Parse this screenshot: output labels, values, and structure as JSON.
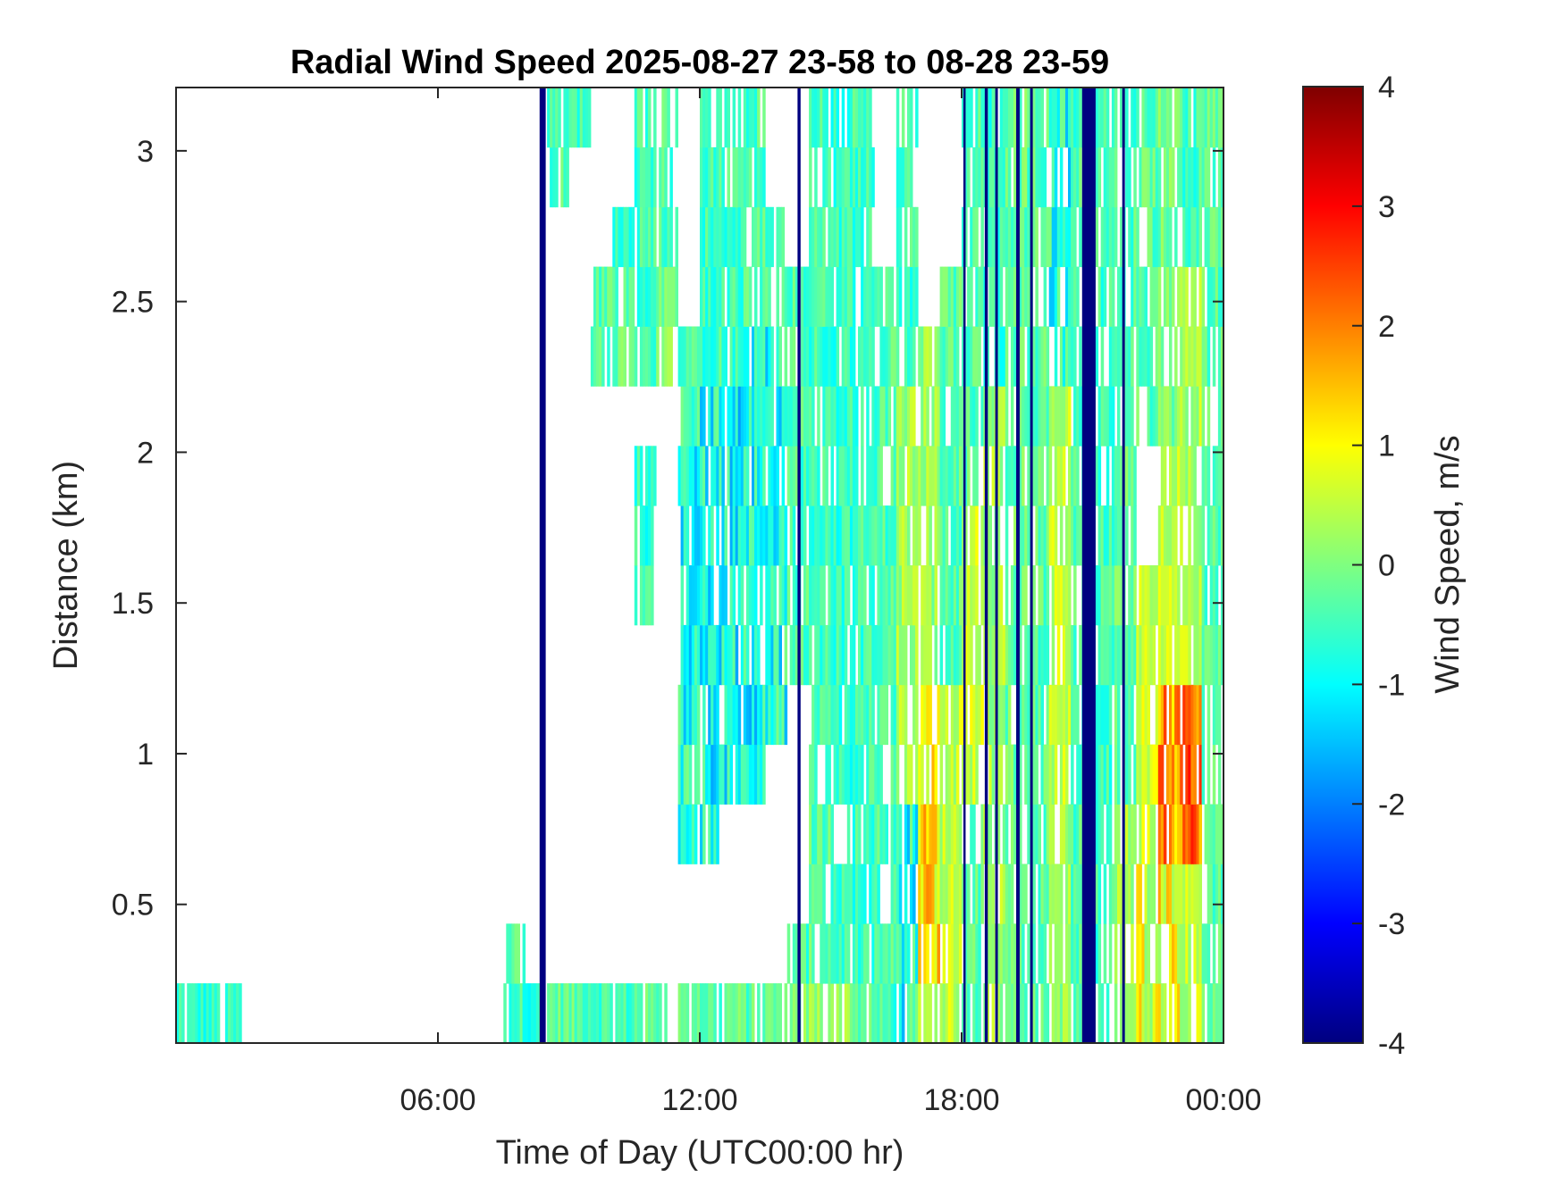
{
  "chart_data": {
    "type": "heatmap",
    "title": "Radial Wind Speed 2025-08-27 23-58 to 08-28 23-59",
    "xlabel": "Time of Day (UTC00:00 hr)",
    "ylabel": "Distance (km)",
    "xlim": [
      0,
      24
    ],
    "ylim": [
      0.04,
      3.21
    ],
    "x_ticks": [
      6,
      12,
      18,
      24
    ],
    "x_tick_labels": [
      "06:00",
      "12:00",
      "18:00",
      "00:00"
    ],
    "y_ticks": [
      0.5,
      1,
      1.5,
      2,
      2.5,
      3
    ],
    "y_tick_labels": [
      "0.5",
      "1",
      "1.5",
      "2",
      "2.5",
      "3"
    ],
    "colormap": "jet",
    "colorbar": {
      "label": "Wind Speed, m/s",
      "range": [
        -4,
        4
      ],
      "ticks": [
        4,
        3,
        2,
        1,
        0,
        -1,
        -2,
        -3,
        -4
      ],
      "tick_labels": [
        "4",
        "3",
        "2",
        "1",
        "0",
        "-1",
        "-2",
        "-3",
        "-4"
      ]
    },
    "grid": false,
    "time_bin_hours": 0.5,
    "distance_bin_centers_km": [
      0.14,
      0.34,
      0.54,
      0.74,
      0.93,
      1.13,
      1.33,
      1.53,
      1.73,
      1.93,
      2.12,
      2.32,
      2.52,
      2.72,
      2.92,
      3.11
    ],
    "values_ms_by_distance": [
      [
        -0.7,
        -0.7,
        -0.7,
        null,
        null,
        null,
        null,
        null,
        null,
        null,
        null,
        null,
        null,
        null,
        null,
        -0.5,
        -0.6,
        -0.2,
        -0.3,
        -0.4,
        -0.5,
        -0.3,
        -0.2,
        -0.1,
        -0.3,
        -0.2,
        -0.3,
        -0.2,
        0.0,
        0.2,
        0.3,
        -0.2,
        -0.5,
        -0.8,
        0.5,
        0.5,
        -0.3,
        0.3,
        -0.2,
        -0.3,
        0.2,
        -0.4,
        -0.5,
        0.3,
        0.8,
        1.0,
        0.5,
        -0.3
      ],
      [
        null,
        null,
        null,
        null,
        null,
        null,
        null,
        null,
        null,
        null,
        null,
        null,
        null,
        null,
        null,
        -0.3,
        null,
        null,
        null,
        null,
        null,
        null,
        null,
        null,
        null,
        null,
        null,
        null,
        -0.4,
        -0.3,
        -0.5,
        -0.6,
        -0.4,
        -0.8,
        1.2,
        0.5,
        -0.3,
        0.3,
        -0.2,
        -0.3,
        0.2,
        -0.4,
        -0.5,
        0.3,
        0.8,
        1.0,
        0.5,
        -0.3
      ],
      [
        null,
        null,
        null,
        null,
        null,
        null,
        null,
        null,
        null,
        null,
        null,
        null,
        null,
        null,
        null,
        null,
        null,
        null,
        null,
        null,
        null,
        null,
        null,
        null,
        null,
        null,
        null,
        null,
        null,
        -0.3,
        -0.6,
        -0.6,
        -0.4,
        -0.8,
        1.2,
        0.5,
        -0.3,
        0.3,
        -0.2,
        -0.3,
        0.2,
        -0.4,
        -0.5,
        0.3,
        0.8,
        1.0,
        0.5,
        -0.3
      ],
      [
        null,
        null,
        null,
        null,
        null,
        null,
        null,
        null,
        null,
        null,
        null,
        null,
        null,
        null,
        null,
        null,
        null,
        null,
        null,
        null,
        null,
        null,
        null,
        -0.8,
        -0.9,
        null,
        null,
        null,
        null,
        -0.3,
        -0.6,
        -0.5,
        -0.4,
        -0.8,
        1.2,
        0.5,
        -0.3,
        0.3,
        -0.2,
        -0.3,
        0.2,
        -0.4,
        -0.5,
        0.3,
        0.6,
        1.8,
        2.2,
        -0.3
      ],
      [
        null,
        null,
        null,
        null,
        null,
        null,
        null,
        null,
        null,
        null,
        null,
        null,
        null,
        null,
        null,
        null,
        null,
        null,
        null,
        null,
        null,
        null,
        null,
        -0.8,
        -0.9,
        -1.0,
        -0.9,
        null,
        null,
        -0.5,
        -0.6,
        -0.5,
        -0.4,
        0.3,
        1.2,
        0.5,
        0.6,
        0.3,
        -0.2,
        -0.3,
        0.5,
        -0.4,
        -0.5,
        -0.2,
        0.6,
        1.8,
        2.2,
        -0.3
      ],
      [
        null,
        null,
        null,
        null,
        null,
        null,
        null,
        null,
        null,
        null,
        null,
        null,
        null,
        null,
        null,
        null,
        null,
        null,
        null,
        null,
        null,
        null,
        null,
        -0.8,
        -0.9,
        -1.0,
        -0.9,
        -0.8,
        null,
        -0.5,
        -0.6,
        -0.5,
        -0.4,
        0.3,
        1.2,
        0.5,
        0.6,
        0.3,
        -0.2,
        -0.3,
        0.5,
        -0.4,
        -0.5,
        -0.2,
        0.6,
        1.8,
        2.2,
        -0.3
      ],
      [
        null,
        null,
        null,
        null,
        null,
        null,
        null,
        null,
        null,
        null,
        null,
        null,
        null,
        null,
        null,
        null,
        null,
        null,
        null,
        null,
        null,
        null,
        null,
        -0.8,
        -0.9,
        -1.0,
        -0.9,
        -0.8,
        -0.4,
        -0.5,
        -0.6,
        -0.5,
        -0.4,
        0.3,
        0.2,
        -0.3,
        0.6,
        0.3,
        -0.2,
        -0.3,
        0.5,
        -0.4,
        -0.5,
        -0.2,
        0.6,
        0.5,
        0.4,
        -0.3
      ],
      [
        null,
        null,
        null,
        null,
        null,
        null,
        null,
        null,
        null,
        null,
        null,
        null,
        null,
        null,
        null,
        null,
        null,
        null,
        null,
        null,
        null,
        -0.6,
        null,
        -0.8,
        -0.9,
        -1.0,
        -0.9,
        -0.8,
        -0.4,
        -0.5,
        -0.6,
        -0.5,
        -0.4,
        0.3,
        0.2,
        -0.3,
        0.6,
        0.3,
        -0.2,
        -0.3,
        0.5,
        -0.4,
        -0.5,
        -0.2,
        0.6,
        0.5,
        0.4,
        -0.3
      ],
      [
        null,
        null,
        null,
        null,
        null,
        null,
        null,
        null,
        null,
        null,
        null,
        null,
        null,
        null,
        null,
        null,
        null,
        null,
        null,
        null,
        null,
        -0.6,
        null,
        -0.8,
        -0.9,
        -1.0,
        -0.9,
        -0.8,
        -0.4,
        -0.5,
        -0.6,
        -0.5,
        -0.4,
        0.3,
        0.2,
        -0.3,
        0.6,
        0.3,
        -0.2,
        -0.3,
        0.5,
        -0.4,
        -0.5,
        -0.2,
        null,
        0.5,
        0.4,
        -0.3
      ],
      [
        null,
        null,
        null,
        null,
        null,
        null,
        null,
        null,
        null,
        null,
        null,
        null,
        null,
        null,
        null,
        null,
        null,
        null,
        null,
        null,
        null,
        -0.6,
        null,
        -0.8,
        -0.9,
        -1.0,
        -0.9,
        -0.8,
        -0.4,
        -0.5,
        -0.6,
        -0.5,
        -0.4,
        0.3,
        0.2,
        -0.3,
        -0.3,
        0.3,
        -0.2,
        -0.3,
        0.5,
        -0.4,
        -0.5,
        -0.2,
        null,
        0.5,
        0.4,
        -0.3
      ],
      [
        null,
        null,
        null,
        null,
        null,
        null,
        null,
        null,
        null,
        null,
        null,
        null,
        null,
        null,
        null,
        null,
        null,
        null,
        null,
        null,
        null,
        null,
        null,
        -0.5,
        -0.9,
        -1.0,
        -0.9,
        -0.8,
        -0.4,
        -0.5,
        -0.6,
        -0.5,
        -0.4,
        0.3,
        0.2,
        -0.3,
        -0.3,
        0.3,
        -0.2,
        -0.3,
        0.5,
        -0.4,
        -0.5,
        -0.2,
        -0.3,
        -0.1,
        0.4,
        -0.3
      ],
      [
        null,
        null,
        null,
        null,
        null,
        null,
        null,
        null,
        null,
        null,
        null,
        null,
        null,
        null,
        null,
        null,
        null,
        null,
        null,
        -0.3,
        -0.2,
        -0.5,
        0.0,
        -0.5,
        -0.5,
        -0.5,
        -0.9,
        -0.8,
        -0.4,
        -0.5,
        -0.6,
        -0.5,
        -0.4,
        -0.5,
        0.2,
        -0.3,
        -0.3,
        -0.6,
        -0.2,
        -0.3,
        -0.8,
        -0.4,
        -0.5,
        -0.4,
        -0.3,
        -0.1,
        0.4,
        -0.3
      ],
      [
        null,
        null,
        null,
        null,
        null,
        null,
        null,
        null,
        null,
        null,
        null,
        null,
        null,
        null,
        null,
        null,
        null,
        null,
        null,
        -0.3,
        -0.2,
        -0.5,
        0.0,
        null,
        -0.5,
        -0.5,
        -0.4,
        -0.4,
        -0.4,
        -0.5,
        -0.6,
        -0.5,
        -0.4,
        -0.5,
        null,
        -0.3,
        -0.3,
        -0.6,
        -0.2,
        -0.3,
        -0.8,
        -0.4,
        -0.5,
        -0.4,
        -0.3,
        -0.1,
        0.4,
        -0.3
      ],
      [
        null,
        null,
        null,
        null,
        null,
        null,
        null,
        null,
        null,
        null,
        null,
        null,
        null,
        null,
        null,
        null,
        null,
        null,
        null,
        null,
        -0.6,
        -0.5,
        -0.4,
        null,
        -0.5,
        -0.5,
        -0.4,
        -0.4,
        null,
        -0.5,
        -0.6,
        -0.5,
        null,
        -0.5,
        null,
        null,
        -0.3,
        -0.6,
        -0.2,
        -0.3,
        -0.8,
        -0.4,
        -0.5,
        -0.4,
        -0.3,
        -0.1,
        -0.5,
        -0.3
      ],
      [
        null,
        null,
        null,
        null,
        null,
        null,
        null,
        null,
        null,
        null,
        null,
        null,
        null,
        null,
        null,
        null,
        null,
        -0.4,
        null,
        null,
        null,
        -0.5,
        -0.4,
        null,
        -0.4,
        -0.5,
        -0.4,
        null,
        null,
        -0.5,
        -0.6,
        -0.5,
        null,
        -0.5,
        null,
        null,
        -0.3,
        -0.6,
        -0.2,
        -0.3,
        -0.8,
        -0.4,
        -0.5,
        -0.4,
        -0.3,
        -0.1,
        -0.5,
        -0.3
      ],
      [
        null,
        null,
        null,
        null,
        null,
        null,
        null,
        null,
        null,
        null,
        null,
        null,
        null,
        null,
        null,
        null,
        null,
        -0.4,
        -0.5,
        null,
        null,
        -0.5,
        -0.4,
        null,
        -0.4,
        -0.5,
        -0.4,
        null,
        null,
        -0.5,
        -0.6,
        -0.3,
        null,
        -0.5,
        null,
        null,
        -0.3,
        -0.6,
        -0.2,
        -0.3,
        -0.8,
        -0.4,
        -0.5,
        -0.4,
        -0.3,
        -0.1,
        -0.5,
        -0.3
      ]
    ],
    "full_column_streaks": [
      {
        "start_hr": 8.33,
        "end_hr": 8.47,
        "value": -4
      },
      {
        "start_hr": 14.24,
        "end_hr": 14.31,
        "value": -4
      },
      {
        "start_hr": 18.04,
        "end_hr": 18.08,
        "value": -4
      },
      {
        "start_hr": 18.53,
        "end_hr": 18.6,
        "value": -4
      },
      {
        "start_hr": 18.77,
        "end_hr": 18.83,
        "value": -4
      },
      {
        "start_hr": 19.25,
        "end_hr": 19.33,
        "value": -4
      },
      {
        "start_hr": 19.57,
        "end_hr": 19.63,
        "value": -4
      },
      {
        "start_hr": 20.76,
        "end_hr": 21.07,
        "value": -4
      },
      {
        "start_hr": 21.68,
        "end_hr": 21.74,
        "value": -4
      }
    ]
  }
}
